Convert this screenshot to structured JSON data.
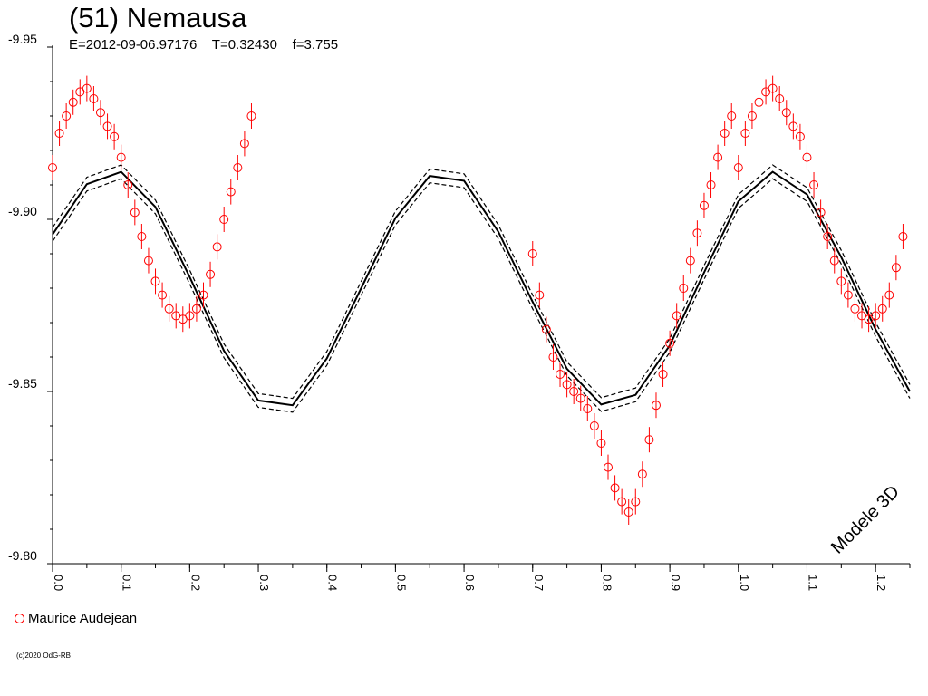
{
  "chart_data": {
    "type": "scatter",
    "title": "(51) Nemausa",
    "subtitle_parts": [
      "E=2012-09-06.97176",
      "T=0.32430",
      "f=3.755"
    ],
    "model_label": "Modele 3D",
    "x_ticks": [
      "0.0",
      "0.1",
      "0.2",
      "0.3",
      "0.4",
      "0.5",
      "0.6",
      "0.7",
      "0.8",
      "0.9",
      "1.0",
      "1.1",
      "1.2"
    ],
    "y_ticks": [
      "-9.95",
      "-9.90",
      "-9.85",
      "-9.80"
    ],
    "xlim": [
      0.0,
      1.25
    ],
    "ylim": [
      -9.95,
      -9.8
    ],
    "y_inverted": true,
    "series": [
      {
        "name": "Maurice Audejean",
        "color": "#ff0000",
        "marker": "open-circle",
        "error_bars": true,
        "points": [
          {
            "x": 0.0,
            "y": -9.915
          },
          {
            "x": 0.01,
            "y": -9.925
          },
          {
            "x": 0.02,
            "y": -9.93
          },
          {
            "x": 0.03,
            "y": -9.934
          },
          {
            "x": 0.04,
            "y": -9.937
          },
          {
            "x": 0.05,
            "y": -9.938
          },
          {
            "x": 0.06,
            "y": -9.935
          },
          {
            "x": 0.07,
            "y": -9.931
          },
          {
            "x": 0.08,
            "y": -9.927
          },
          {
            "x": 0.09,
            "y": -9.924
          },
          {
            "x": 0.1,
            "y": -9.918
          },
          {
            "x": 0.11,
            "y": -9.91
          },
          {
            "x": 0.12,
            "y": -9.902
          },
          {
            "x": 0.13,
            "y": -9.895
          },
          {
            "x": 0.14,
            "y": -9.888
          },
          {
            "x": 0.15,
            "y": -9.882
          },
          {
            "x": 0.16,
            "y": -9.878
          },
          {
            "x": 0.17,
            "y": -9.874
          },
          {
            "x": 0.18,
            "y": -9.872
          },
          {
            "x": 0.19,
            "y": -9.871
          },
          {
            "x": 0.2,
            "y": -9.872
          },
          {
            "x": 0.21,
            "y": -9.874
          },
          {
            "x": 0.22,
            "y": -9.878
          },
          {
            "x": 0.23,
            "y": -9.884
          },
          {
            "x": 0.24,
            "y": -9.892
          },
          {
            "x": 0.25,
            "y": -9.9
          },
          {
            "x": 0.26,
            "y": -9.908
          },
          {
            "x": 0.27,
            "y": -9.915
          },
          {
            "x": 0.28,
            "y": -9.922
          },
          {
            "x": 0.29,
            "y": -9.93
          },
          {
            "x": 0.7,
            "y": -9.89
          },
          {
            "x": 0.71,
            "y": -9.878
          },
          {
            "x": 0.72,
            "y": -9.868
          },
          {
            "x": 0.73,
            "y": -9.86
          },
          {
            "x": 0.74,
            "y": -9.855
          },
          {
            "x": 0.75,
            "y": -9.852
          },
          {
            "x": 0.76,
            "y": -9.85
          },
          {
            "x": 0.77,
            "y": -9.848
          },
          {
            "x": 0.78,
            "y": -9.845
          },
          {
            "x": 0.79,
            "y": -9.84
          },
          {
            "x": 0.8,
            "y": -9.835
          },
          {
            "x": 0.81,
            "y": -9.828
          },
          {
            "x": 0.82,
            "y": -9.822
          },
          {
            "x": 0.83,
            "y": -9.818
          },
          {
            "x": 0.84,
            "y": -9.815
          },
          {
            "x": 0.85,
            "y": -9.818
          },
          {
            "x": 0.86,
            "y": -9.826
          },
          {
            "x": 0.87,
            "y": -9.836
          },
          {
            "x": 0.88,
            "y": -9.846
          },
          {
            "x": 0.89,
            "y": -9.855
          },
          {
            "x": 0.9,
            "y": -9.864
          },
          {
            "x": 0.91,
            "y": -9.872
          },
          {
            "x": 0.92,
            "y": -9.88
          },
          {
            "x": 0.93,
            "y": -9.888
          },
          {
            "x": 0.94,
            "y": -9.896
          },
          {
            "x": 0.95,
            "y": -9.904
          },
          {
            "x": 0.96,
            "y": -9.91
          },
          {
            "x": 0.97,
            "y": -9.918
          },
          {
            "x": 0.98,
            "y": -9.925
          },
          {
            "x": 0.99,
            "y": -9.93
          },
          {
            "x": 1.0,
            "y": -9.915
          },
          {
            "x": 1.01,
            "y": -9.925
          },
          {
            "x": 1.02,
            "y": -9.93
          },
          {
            "x": 1.03,
            "y": -9.934
          },
          {
            "x": 1.04,
            "y": -9.937
          },
          {
            "x": 1.05,
            "y": -9.938
          },
          {
            "x": 1.06,
            "y": -9.935
          },
          {
            "x": 1.07,
            "y": -9.931
          },
          {
            "x": 1.08,
            "y": -9.927
          },
          {
            "x": 1.09,
            "y": -9.924
          },
          {
            "x": 1.1,
            "y": -9.918
          },
          {
            "x": 1.11,
            "y": -9.91
          },
          {
            "x": 1.12,
            "y": -9.902
          },
          {
            "x": 1.13,
            "y": -9.895
          },
          {
            "x": 1.14,
            "y": -9.888
          },
          {
            "x": 1.15,
            "y": -9.882
          },
          {
            "x": 1.16,
            "y": -9.878
          },
          {
            "x": 1.17,
            "y": -9.874
          },
          {
            "x": 1.18,
            "y": -9.872
          },
          {
            "x": 1.19,
            "y": -9.871
          },
          {
            "x": 1.2,
            "y": -9.872
          },
          {
            "x": 1.21,
            "y": -9.874
          },
          {
            "x": 1.22,
            "y": -9.878
          },
          {
            "x": 1.23,
            "y": -9.886
          },
          {
            "x": 1.24,
            "y": -9.895
          }
        ]
      },
      {
        "color": "#000000",
        "style": "solid",
        "points": [
          {
            "x": 0.0,
            "y": -9.8956
          },
          {
            "x": 0.05,
            "y": -9.9102
          },
          {
            "x": 0.1,
            "y": -9.9138
          },
          {
            "x": 0.15,
            "y": -9.9036
          },
          {
            "x": 0.2,
            "y": -9.8832
          },
          {
            "x": 0.25,
            "y": -9.8618
          },
          {
            "x": 0.3,
            "y": -9.8474
          },
          {
            "x": 0.35,
            "y": -9.846
          },
          {
            "x": 0.4,
            "y": -9.8596
          },
          {
            "x": 0.45,
            "y": -9.88
          },
          {
            "x": 0.5,
            "y": -9.9004
          },
          {
            "x": 0.55,
            "y": -9.9126
          },
          {
            "x": 0.6,
            "y": -9.9112
          },
          {
            "x": 0.65,
            "y": -9.8964
          },
          {
            "x": 0.7,
            "y": -9.876
          },
          {
            "x": 0.75,
            "y": -9.8566
          },
          {
            "x": 0.8,
            "y": -9.8462
          },
          {
            "x": 0.85,
            "y": -9.849
          },
          {
            "x": 0.9,
            "y": -9.8634
          },
          {
            "x": 0.95,
            "y": -9.8846
          },
          {
            "x": 1.0,
            "y": -9.9052
          },
          {
            "x": 1.05,
            "y": -9.9138
          },
          {
            "x": 1.1,
            "y": -9.9072
          },
          {
            "x": 1.15,
            "y": -9.889
          },
          {
            "x": 1.2,
            "y": -9.868
          },
          {
            "x": 1.25,
            "y": -9.85
          }
        ]
      },
      {
        "color": "#000000",
        "style": "dashed",
        "points": [
          {
            "x": 0.0,
            "y": -9.8976
          },
          {
            "x": 0.05,
            "y": -9.9122
          },
          {
            "x": 0.1,
            "y": -9.9158
          },
          {
            "x": 0.15,
            "y": -9.9056
          },
          {
            "x": 0.2,
            "y": -9.8852
          },
          {
            "x": 0.25,
            "y": -9.8638
          },
          {
            "x": 0.3,
            "y": -9.8494
          },
          {
            "x": 0.35,
            "y": -9.848
          },
          {
            "x": 0.4,
            "y": -9.8616
          },
          {
            "x": 0.45,
            "y": -9.882
          },
          {
            "x": 0.5,
            "y": -9.9024
          },
          {
            "x": 0.55,
            "y": -9.9146
          },
          {
            "x": 0.6,
            "y": -9.9132
          },
          {
            "x": 0.65,
            "y": -9.8984
          },
          {
            "x": 0.7,
            "y": -9.878
          },
          {
            "x": 0.75,
            "y": -9.8586
          },
          {
            "x": 0.8,
            "y": -9.8482
          },
          {
            "x": 0.85,
            "y": -9.851
          },
          {
            "x": 0.9,
            "y": -9.8654
          },
          {
            "x": 0.95,
            "y": -9.8866
          },
          {
            "x": 1.0,
            "y": -9.9072
          },
          {
            "x": 1.05,
            "y": -9.9158
          },
          {
            "x": 1.1,
            "y": -9.9092
          },
          {
            "x": 1.15,
            "y": -9.891
          },
          {
            "x": 1.2,
            "y": -9.87
          },
          {
            "x": 1.25,
            "y": -9.852
          }
        ]
      },
      {
        "color": "#000000",
        "style": "dashed",
        "points": [
          {
            "x": 0.0,
            "y": -9.8936
          },
          {
            "x": 0.05,
            "y": -9.9082
          },
          {
            "x": 0.1,
            "y": -9.9118
          },
          {
            "x": 0.15,
            "y": -9.9016
          },
          {
            "x": 0.2,
            "y": -9.8812
          },
          {
            "x": 0.25,
            "y": -9.8598
          },
          {
            "x": 0.3,
            "y": -9.8454
          },
          {
            "x": 0.35,
            "y": -9.844
          },
          {
            "x": 0.4,
            "y": -9.8576
          },
          {
            "x": 0.45,
            "y": -9.878
          },
          {
            "x": 0.5,
            "y": -9.8984
          },
          {
            "x": 0.55,
            "y": -9.9106
          },
          {
            "x": 0.6,
            "y": -9.9092
          },
          {
            "x": 0.65,
            "y": -9.8944
          },
          {
            "x": 0.7,
            "y": -9.874
          },
          {
            "x": 0.75,
            "y": -9.8546
          },
          {
            "x": 0.8,
            "y": -9.8442
          },
          {
            "x": 0.85,
            "y": -9.847
          },
          {
            "x": 0.9,
            "y": -9.8614
          },
          {
            "x": 0.95,
            "y": -9.8826
          },
          {
            "x": 1.0,
            "y": -9.9032
          },
          {
            "x": 1.05,
            "y": -9.9118
          },
          {
            "x": 1.1,
            "y": -9.9052
          },
          {
            "x": 1.15,
            "y": -9.887
          },
          {
            "x": 1.2,
            "y": -9.866
          },
          {
            "x": 1.25,
            "y": -9.848
          }
        ]
      }
    ]
  },
  "legend": {
    "label": "Maurice Audejean",
    "color": "#ff0000"
  },
  "copyright": "(c)2020 OdG-RB"
}
